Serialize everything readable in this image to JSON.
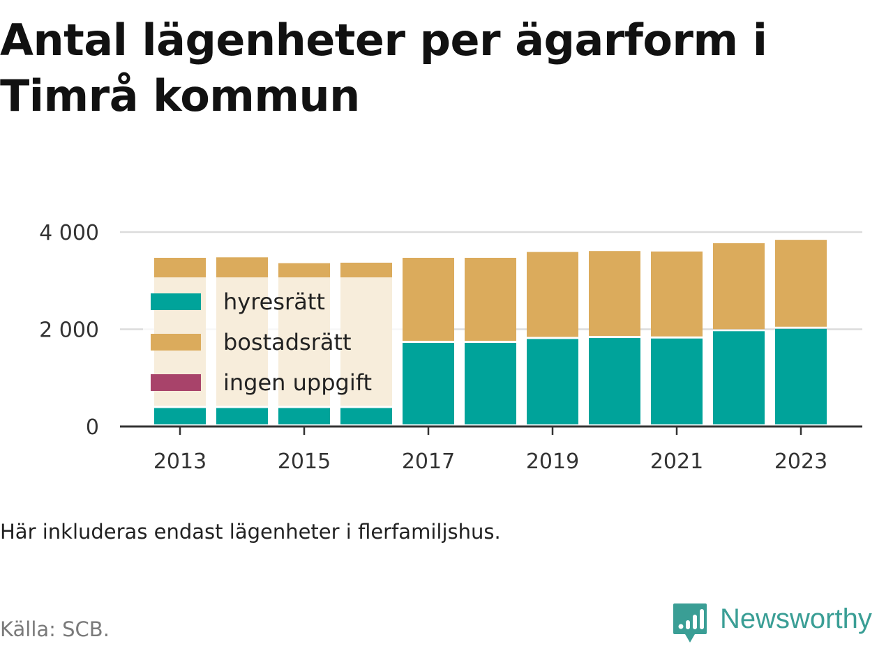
{
  "title": "Antal lägenheter per ägarform i Timrå kommun",
  "caption": "Här inkluderas endast lägenheter i flerfamiljshus.",
  "source": "Källa: SCB.",
  "brand": {
    "name": "Newsworthy",
    "color": "#3a9e95",
    "icon": "speech-bubble-chart-icon"
  },
  "chart_data": {
    "type": "bar",
    "stacked": true,
    "x": [
      2013,
      2014,
      2015,
      2016,
      2017,
      2018,
      2019,
      2020,
      2021,
      2022,
      2023
    ],
    "x_tick_labels": [
      "2013",
      "2015",
      "2017",
      "2019",
      "2021",
      "2023"
    ],
    "y_ticks": [
      0,
      2000,
      4000
    ],
    "y_tick_labels": [
      "0",
      "2 000",
      "4 000"
    ],
    "ylim": [
      0,
      4000
    ],
    "grid": true,
    "legend_position": "left, inside plot",
    "series": [
      {
        "name": "hyresrätt",
        "color": "#00a39a",
        "values": [
          380,
          380,
          380,
          380,
          1720,
          1720,
          1800,
          1820,
          1810,
          1960,
          2010
        ]
      },
      {
        "name": "bostadsrätt",
        "color": "#dbab5c",
        "values": [
          3090,
          3100,
          2980,
          2990,
          1750,
          1750,
          1790,
          1790,
          1790,
          1810,
          1830
        ]
      },
      {
        "name": "ingen uppgift",
        "color": "#a8436a",
        "values": [
          0,
          0,
          0,
          0,
          0,
          0,
          0,
          0,
          0,
          0,
          0
        ]
      }
    ]
  }
}
